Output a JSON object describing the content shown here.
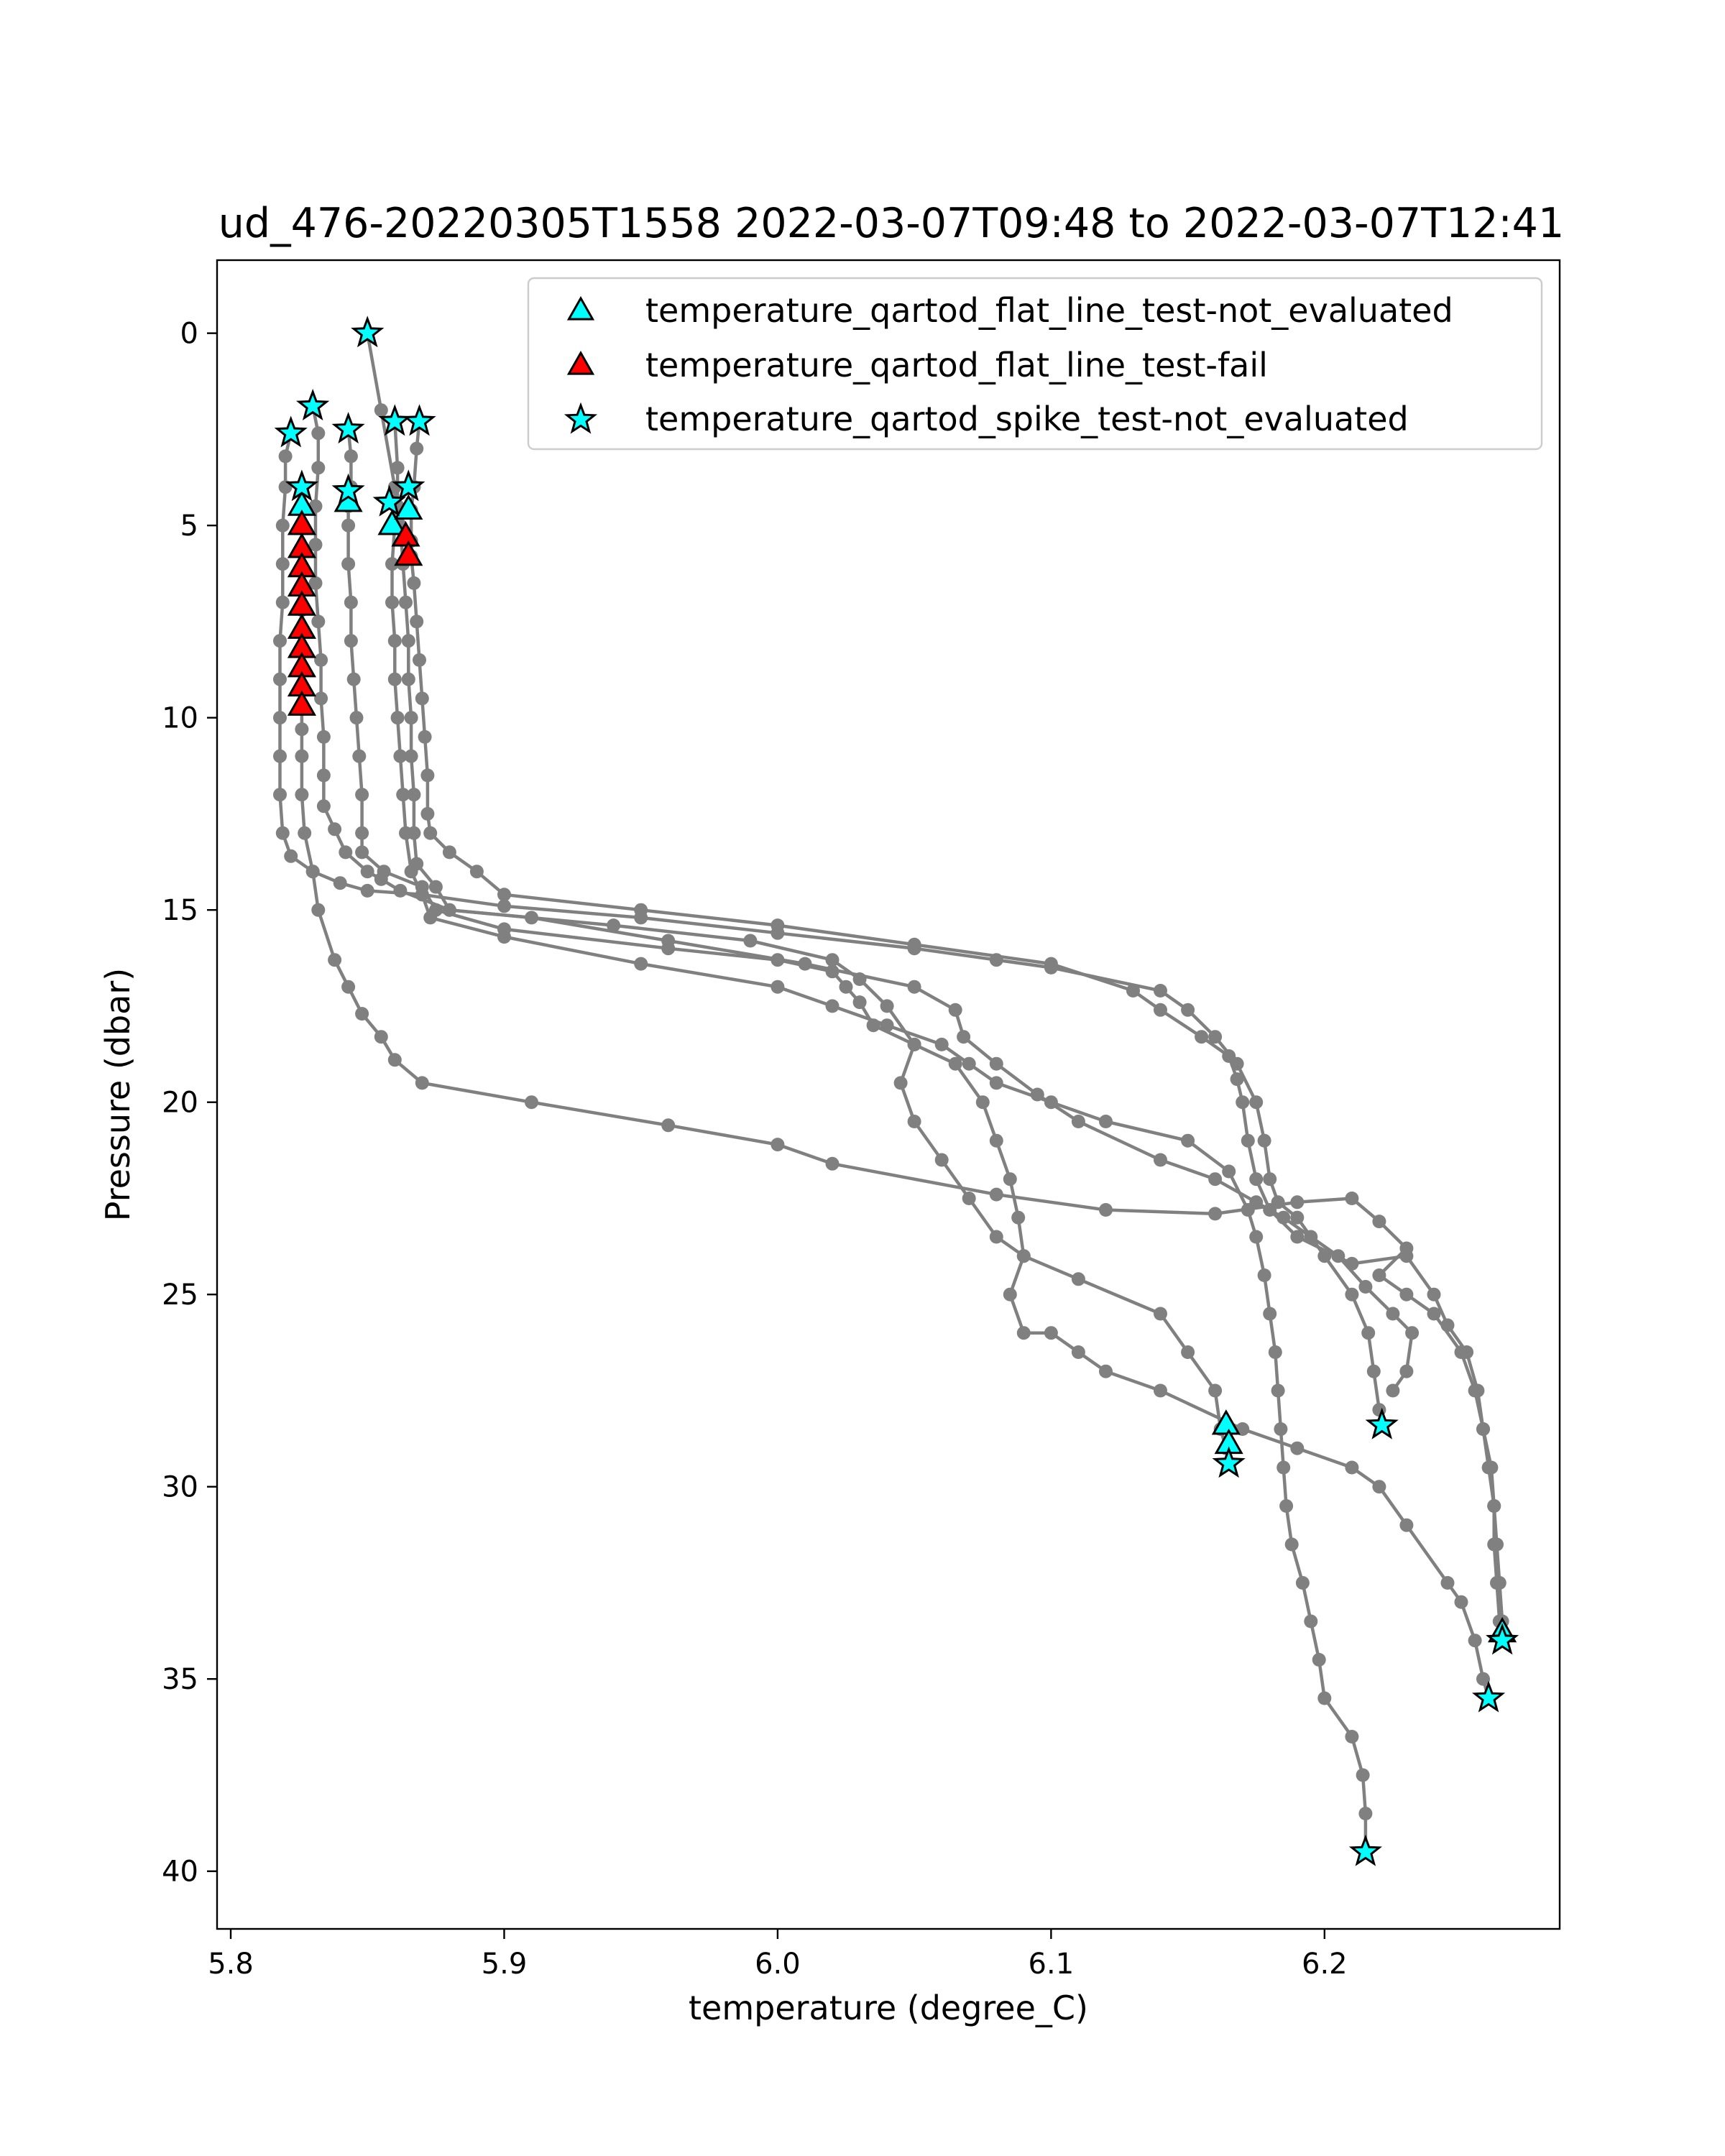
{
  "chart_data": {
    "type": "scatter",
    "title": "ud_476-20220305T1558 2022-03-07T09:48 to 2022-03-07T12:41",
    "xlabel": "temperature (degree_C)",
    "ylabel": "Pressure (dbar)",
    "xlim": [
      5.795,
      6.286
    ],
    "ylim": [
      41.5,
      -1.9
    ],
    "y_inverted": true,
    "grid": false,
    "legend_position": "top-right",
    "x_ticks": [
      {
        "value": 5.8,
        "label": "5.8"
      },
      {
        "value": 5.9,
        "label": "5.9"
      },
      {
        "value": 6.0,
        "label": "6.0"
      },
      {
        "value": 6.1,
        "label": "6.1"
      },
      {
        "value": 6.2,
        "label": "6.2"
      }
    ],
    "y_ticks": [
      {
        "value": 0,
        "label": "0"
      },
      {
        "value": 5,
        "label": "5"
      },
      {
        "value": 10,
        "label": "10"
      },
      {
        "value": 15,
        "label": "15"
      },
      {
        "value": 20,
        "label": "20"
      },
      {
        "value": 25,
        "label": "25"
      },
      {
        "value": 30,
        "label": "30"
      },
      {
        "value": 35,
        "label": "35"
      },
      {
        "value": 40,
        "label": "40"
      }
    ],
    "profile_color": "#808080",
    "profiles": [
      [
        [
          5.822,
          2.6
        ],
        [
          5.82,
          3.2
        ],
        [
          5.82,
          4.0
        ],
        [
          5.819,
          5.0
        ],
        [
          5.819,
          6.0
        ],
        [
          5.819,
          7.0
        ],
        [
          5.818,
          8.0
        ],
        [
          5.818,
          9.0
        ],
        [
          5.818,
          10.0
        ],
        [
          5.818,
          11.0
        ],
        [
          5.818,
          12.0
        ],
        [
          5.819,
          13.0
        ],
        [
          5.822,
          13.6
        ],
        [
          5.83,
          14.0
        ],
        [
          5.84,
          14.3
        ],
        [
          5.85,
          14.5
        ],
        [
          5.87,
          14.6
        ],
        [
          5.9,
          14.9
        ],
        [
          5.95,
          15.2
        ],
        [
          6.0,
          15.6
        ],
        [
          6.05,
          16.0
        ],
        [
          6.08,
          16.3
        ],
        [
          6.1,
          16.5
        ],
        [
          6.14,
          17.1
        ],
        [
          6.15,
          17.6
        ],
        [
          6.16,
          18.3
        ],
        [
          6.168,
          19.0
        ],
        [
          6.175,
          20.0
        ],
        [
          6.178,
          21.0
        ],
        [
          6.18,
          22.0
        ],
        [
          6.183,
          22.6
        ],
        [
          6.19,
          23.0
        ],
        [
          6.2,
          24.0
        ],
        [
          6.21,
          25.0
        ],
        [
          6.216,
          26.0
        ],
        [
          6.218,
          27.0
        ],
        [
          6.22,
          28.0
        ],
        [
          6.221,
          28.4
        ]
      ],
      [
        [
          5.826,
          4.0
        ],
        [
          5.826,
          4.5
        ],
        [
          5.826,
          5.0
        ],
        [
          5.826,
          5.6
        ],
        [
          5.826,
          6.2
        ],
        [
          5.826,
          6.7
        ],
        [
          5.826,
          7.2
        ],
        [
          5.826,
          7.7
        ],
        [
          5.826,
          8.2
        ],
        [
          5.826,
          8.7
        ],
        [
          5.826,
          9.2
        ],
        [
          5.826,
          9.7
        ],
        [
          5.826,
          10.3
        ],
        [
          5.826,
          11.0
        ],
        [
          5.826,
          12.0
        ],
        [
          5.827,
          13.0
        ],
        [
          5.83,
          14.0
        ],
        [
          5.832,
          15.0
        ],
        [
          5.838,
          16.3
        ],
        [
          5.843,
          17.0
        ],
        [
          5.848,
          17.7
        ],
        [
          5.855,
          18.3
        ],
        [
          5.86,
          18.9
        ],
        [
          5.87,
          19.5
        ],
        [
          5.91,
          20.0
        ],
        [
          5.96,
          20.6
        ],
        [
          6.0,
          21.1
        ],
        [
          6.02,
          21.6
        ],
        [
          6.08,
          22.4
        ],
        [
          6.12,
          22.8
        ],
        [
          6.16,
          22.9
        ],
        [
          6.19,
          22.6
        ],
        [
          6.21,
          22.5
        ],
        [
          6.22,
          23.1
        ],
        [
          6.23,
          23.8
        ],
        [
          6.22,
          24.5
        ],
        [
          6.23,
          25.0
        ],
        [
          6.24,
          25.5
        ],
        [
          6.25,
          26.5
        ],
        [
          6.255,
          27.5
        ],
        [
          6.258,
          28.5
        ],
        [
          6.26,
          29.5
        ],
        [
          6.262,
          30.5
        ],
        [
          6.263,
          31.5
        ],
        [
          6.264,
          32.5
        ],
        [
          6.265,
          33.5
        ],
        [
          6.265,
          34.0
        ]
      ],
      [
        [
          5.83,
          1.9
        ],
        [
          5.832,
          2.6
        ],
        [
          5.832,
          3.5
        ],
        [
          5.831,
          4.5
        ],
        [
          5.831,
          5.5
        ],
        [
          5.831,
          6.5
        ],
        [
          5.832,
          7.5
        ],
        [
          5.833,
          8.5
        ],
        [
          5.833,
          9.5
        ],
        [
          5.834,
          10.5
        ],
        [
          5.834,
          11.5
        ],
        [
          5.834,
          12.3
        ],
        [
          5.838,
          12.9
        ],
        [
          5.842,
          13.5
        ],
        [
          5.85,
          14.0
        ],
        [
          5.855,
          14.2
        ],
        [
          5.862,
          14.5
        ],
        [
          5.88,
          15.0
        ],
        [
          5.94,
          15.4
        ],
        [
          5.99,
          15.8
        ],
        [
          6.02,
          16.3
        ],
        [
          6.03,
          16.8
        ],
        [
          6.04,
          17.5
        ],
        [
          6.05,
          18.5
        ],
        [
          6.045,
          19.5
        ],
        [
          6.05,
          20.5
        ],
        [
          6.06,
          21.5
        ],
        [
          6.07,
          22.5
        ],
        [
          6.08,
          23.5
        ],
        [
          6.09,
          24.0
        ],
        [
          6.11,
          24.6
        ],
        [
          6.14,
          25.5
        ],
        [
          6.15,
          26.5
        ],
        [
          6.16,
          27.5
        ],
        [
          6.162,
          28.5
        ],
        [
          6.164,
          29.0
        ],
        [
          6.165,
          29.4
        ]
      ],
      [
        [
          5.843,
          2.5
        ],
        [
          5.844,
          3.2
        ],
        [
          5.844,
          4.0
        ],
        [
          5.843,
          4.5
        ],
        [
          5.843,
          5.0
        ],
        [
          5.843,
          6.0
        ],
        [
          5.844,
          7.0
        ],
        [
          5.844,
          8.0
        ],
        [
          5.845,
          9.0
        ],
        [
          5.846,
          10.0
        ],
        [
          5.847,
          11.0
        ],
        [
          5.848,
          12.0
        ],
        [
          5.848,
          13.0
        ],
        [
          5.848,
          13.5
        ],
        [
          5.856,
          14.0
        ],
        [
          5.87,
          14.4
        ],
        [
          5.875,
          15.0
        ],
        [
          5.9,
          15.5
        ],
        [
          5.96,
          16.0
        ],
        [
          6.0,
          16.3
        ],
        [
          6.02,
          16.6
        ],
        [
          6.025,
          17.0
        ],
        [
          6.03,
          17.4
        ],
        [
          6.035,
          18.0
        ],
        [
          6.05,
          18.5
        ],
        [
          6.065,
          19.0
        ],
        [
          6.075,
          20.0
        ],
        [
          6.08,
          21.0
        ],
        [
          6.085,
          22.0
        ],
        [
          6.088,
          23.0
        ],
        [
          6.09,
          24.0
        ],
        [
          6.085,
          25.0
        ],
        [
          6.09,
          26.0
        ],
        [
          6.1,
          26.0
        ],
        [
          6.11,
          26.5
        ],
        [
          6.12,
          27.0
        ],
        [
          6.14,
          27.5
        ],
        [
          6.17,
          28.5
        ],
        [
          6.19,
          29.0
        ],
        [
          6.21,
          29.5
        ],
        [
          6.22,
          30.0
        ],
        [
          6.23,
          31.0
        ],
        [
          6.245,
          32.5
        ],
        [
          6.25,
          33.0
        ],
        [
          6.255,
          34.0
        ],
        [
          6.258,
          35.0
        ],
        [
          6.26,
          35.5
        ]
      ],
      [
        [
          5.85,
          0.0
        ],
        [
          5.855,
          2.0
        ],
        [
          5.86,
          4.0
        ],
        [
          5.86,
          5.0
        ],
        [
          5.859,
          6.0
        ],
        [
          5.859,
          7.0
        ],
        [
          5.86,
          8.0
        ],
        [
          5.86,
          9.0
        ],
        [
          5.861,
          10.0
        ],
        [
          5.862,
          11.0
        ],
        [
          5.863,
          12.0
        ],
        [
          5.864,
          13.0
        ],
        [
          5.866,
          14.0
        ],
        [
          5.87,
          14.6
        ],
        [
          5.873,
          15.2
        ],
        [
          5.9,
          15.7
        ],
        [
          5.95,
          16.4
        ],
        [
          6.0,
          17.0
        ],
        [
          6.02,
          17.5
        ],
        [
          6.04,
          18.0
        ],
        [
          6.06,
          18.5
        ],
        [
          6.07,
          19.0
        ],
        [
          6.08,
          19.5
        ],
        [
          6.1,
          20.0
        ],
        [
          6.12,
          20.5
        ],
        [
          6.15,
          21.0
        ],
        [
          6.165,
          21.8
        ],
        [
          6.172,
          22.8
        ],
        [
          6.175,
          23.5
        ],
        [
          6.178,
          24.5
        ],
        [
          6.18,
          25.5
        ],
        [
          6.182,
          26.5
        ],
        [
          6.183,
          27.5
        ],
        [
          6.184,
          28.5
        ],
        [
          6.185,
          29.5
        ],
        [
          6.186,
          30.5
        ],
        [
          6.188,
          31.5
        ],
        [
          6.192,
          32.5
        ],
        [
          6.195,
          33.5
        ],
        [
          6.198,
          34.5
        ],
        [
          6.2,
          35.5
        ],
        [
          6.21,
          36.5
        ],
        [
          6.214,
          37.5
        ],
        [
          6.215,
          38.5
        ],
        [
          6.215,
          39.5
        ]
      ],
      [
        [
          5.86,
          2.3
        ],
        [
          5.861,
          3.5
        ],
        [
          5.861,
          4.5
        ],
        [
          5.862,
          5.0
        ],
        [
          5.863,
          6.0
        ],
        [
          5.864,
          7.0
        ],
        [
          5.865,
          8.0
        ],
        [
          5.865,
          9.0
        ],
        [
          5.866,
          10.0
        ],
        [
          5.866,
          11.0
        ],
        [
          5.867,
          12.0
        ],
        [
          5.867,
          13.0
        ],
        [
          5.868,
          13.8
        ],
        [
          5.875,
          14.4
        ],
        [
          5.88,
          15.0
        ],
        [
          5.91,
          15.2
        ],
        [
          5.96,
          15.8
        ],
        [
          6.01,
          16.4
        ],
        [
          6.05,
          17.0
        ],
        [
          6.065,
          17.6
        ],
        [
          6.068,
          18.3
        ],
        [
          6.08,
          19.0
        ],
        [
          6.095,
          19.8
        ],
        [
          6.11,
          20.5
        ],
        [
          6.14,
          21.5
        ],
        [
          6.16,
          22.0
        ],
        [
          6.175,
          22.6
        ],
        [
          6.185,
          23.0
        ],
        [
          6.195,
          23.5
        ],
        [
          6.205,
          24.0
        ],
        [
          6.215,
          24.8
        ],
        [
          6.225,
          25.5
        ],
        [
          6.232,
          26.0
        ],
        [
          6.23,
          27.0
        ],
        [
          6.225,
          27.5
        ]
      ],
      [
        [
          5.869,
          2.3
        ],
        [
          5.868,
          3.0
        ],
        [
          5.867,
          4.0
        ],
        [
          5.866,
          4.6
        ],
        [
          5.866,
          5.4
        ],
        [
          5.866,
          5.8
        ],
        [
          5.867,
          6.5
        ],
        [
          5.868,
          7.5
        ],
        [
          5.869,
          8.5
        ],
        [
          5.87,
          9.5
        ],
        [
          5.871,
          10.5
        ],
        [
          5.872,
          11.5
        ],
        [
          5.872,
          12.5
        ],
        [
          5.873,
          13.0
        ],
        [
          5.88,
          13.5
        ],
        [
          5.89,
          14.0
        ],
        [
          5.9,
          14.6
        ],
        [
          5.95,
          15.0
        ],
        [
          6.0,
          15.4
        ],
        [
          6.05,
          15.9
        ],
        [
          6.1,
          16.4
        ],
        [
          6.13,
          17.1
        ],
        [
          6.14,
          17.6
        ],
        [
          6.155,
          18.3
        ],
        [
          6.165,
          18.8
        ],
        [
          6.168,
          19.4
        ],
        [
          6.17,
          20.0
        ],
        [
          6.172,
          21.0
        ],
        [
          6.175,
          22.0
        ],
        [
          6.18,
          22.8
        ],
        [
          6.19,
          23.5
        ],
        [
          6.21,
          24.2
        ],
        [
          6.23,
          24.0
        ],
        [
          6.24,
          25.0
        ],
        [
          6.245,
          25.8
        ],
        [
          6.252,
          26.5
        ],
        [
          6.256,
          27.5
        ],
        [
          6.258,
          28.5
        ],
        [
          6.261,
          29.5
        ],
        [
          6.262,
          30.5
        ],
        [
          6.262,
          31.5
        ],
        [
          6.263,
          32.5
        ],
        [
          6.264,
          33.5
        ],
        [
          6.265,
          34.0
        ]
      ]
    ],
    "series": [
      {
        "name": "temperature_qartod_flat_line_test-not_evaluated",
        "marker": "triangle",
        "color": "#00ffff",
        "points": [
          [
            5.826,
            4.5
          ],
          [
            5.843,
            4.4
          ],
          [
            5.859,
            5.0
          ],
          [
            5.865,
            4.6
          ],
          [
            6.164,
            28.4
          ],
          [
            6.165,
            28.9
          ],
          [
            6.265,
            33.8
          ]
        ]
      },
      {
        "name": "temperature_qartod_flat_line_test-fail",
        "marker": "triangle",
        "color": "#ff0000",
        "points": [
          [
            5.826,
            5.0
          ],
          [
            5.826,
            5.6
          ],
          [
            5.826,
            6.1
          ],
          [
            5.826,
            6.6
          ],
          [
            5.826,
            7.1
          ],
          [
            5.826,
            7.7
          ],
          [
            5.826,
            8.2
          ],
          [
            5.826,
            8.7
          ],
          [
            5.826,
            9.2
          ],
          [
            5.826,
            9.7
          ],
          [
            5.864,
            5.3
          ],
          [
            5.865,
            5.8
          ]
        ]
      },
      {
        "name": "temperature_qartod_spike_test-not_evaluated",
        "marker": "star",
        "color": "#00ffff",
        "points": [
          [
            5.85,
            0.0
          ],
          [
            5.83,
            1.9
          ],
          [
            5.822,
            2.6
          ],
          [
            5.843,
            2.5
          ],
          [
            5.86,
            2.3
          ],
          [
            5.869,
            2.3
          ],
          [
            5.826,
            4.0
          ],
          [
            5.843,
            4.1
          ],
          [
            5.865,
            4.0
          ],
          [
            5.858,
            4.4
          ],
          [
            6.221,
            28.4
          ],
          [
            6.165,
            29.4
          ],
          [
            6.265,
            34.0
          ],
          [
            6.26,
            35.5
          ],
          [
            6.215,
            39.5
          ]
        ]
      }
    ]
  }
}
